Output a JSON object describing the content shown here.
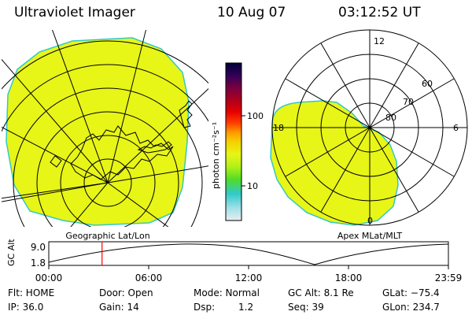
{
  "header": {
    "instrument": "Ultraviolet Imager",
    "date": "10 Aug 07",
    "time": "03:12:52 UT"
  },
  "colors": {
    "aurora": "#e7f517",
    "aurora_edge": "#31c9c9",
    "marker": "#ff0000"
  },
  "colorbar": {
    "unit": "photon cm⁻²s⁻¹",
    "ticks": [
      "100",
      "10"
    ],
    "stops": [
      "#000033",
      "#33005a",
      "#7a0040",
      "#b0001c",
      "#e60000",
      "#ff3c00",
      "#ff9900",
      "#f5d000",
      "#e7f517",
      "#b0f018",
      "#50dc28",
      "#31c9c9",
      "#a0e0e6",
      "#e6eef0"
    ]
  },
  "maps": {
    "left_label": "Geographic Lat/Lon",
    "right_label": "Apex  MLat/MLT",
    "mlt_labels": {
      "top": "12",
      "left": "18",
      "right": "6",
      "bottom": "0"
    },
    "mlat_labels": [
      "60",
      "70",
      "80"
    ]
  },
  "altplot": {
    "ylabel": "GC Alt",
    "yticks": [
      "9.0",
      "1.8"
    ],
    "xticks": [
      "00:00",
      "06:00",
      "12:00",
      "18:00",
      "23:59"
    ],
    "marker_time_hours": 3.2
  },
  "info": {
    "flt": "Flt: HOME",
    "ip": "IP: 36.0",
    "door": "Door: Open",
    "gain": "Gain: 14",
    "mode": "Mode: Normal",
    "dsp_label": "Dsp:",
    "dsp_value": "1.2",
    "gc_alt": "GC Alt: 8.1 Re",
    "seq": "Seq: 39",
    "glat": "GLat: −75.4",
    "glon": "GLon: 234.7"
  }
}
